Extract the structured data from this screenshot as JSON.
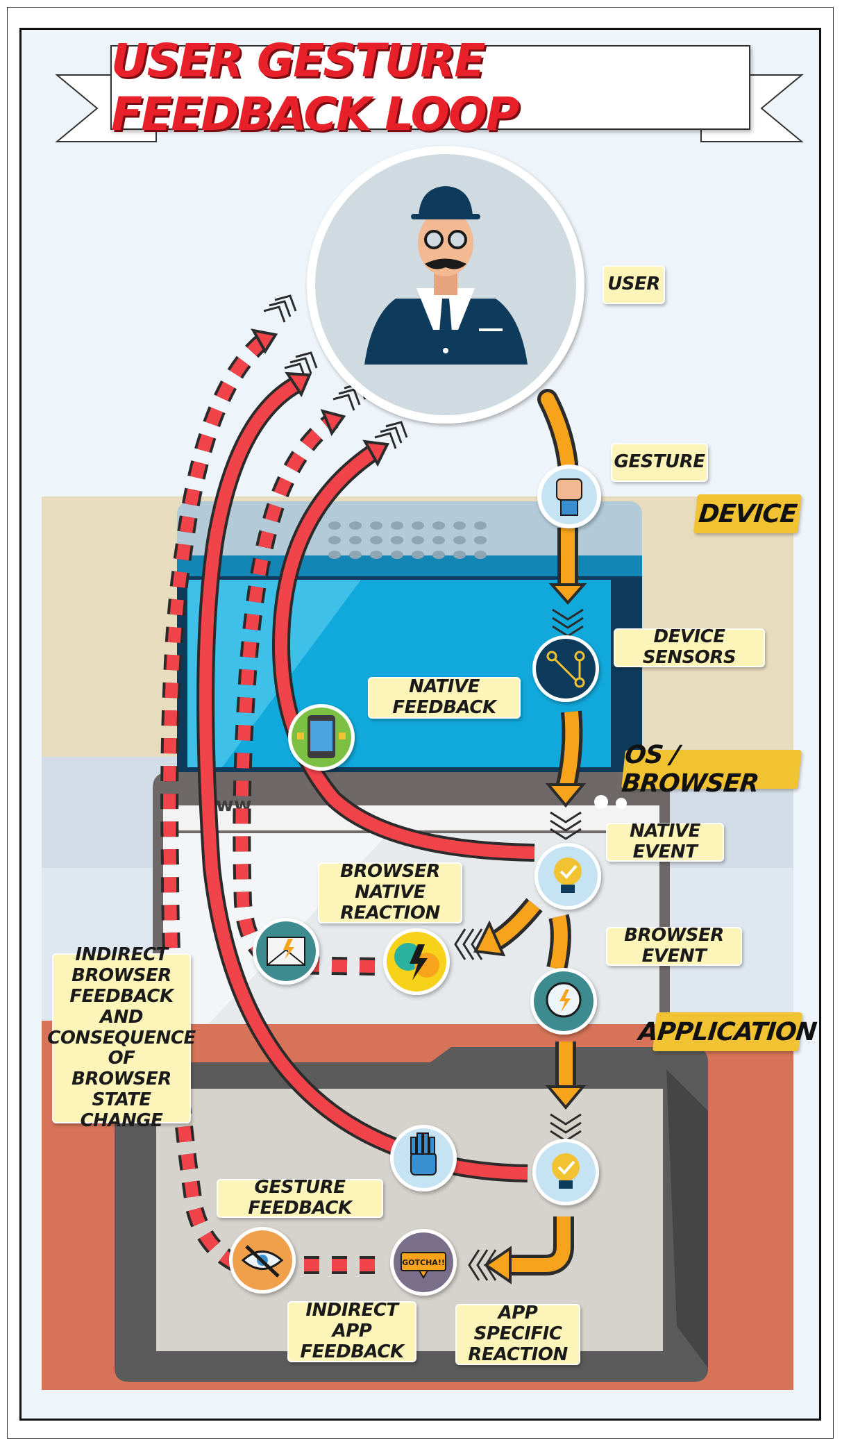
{
  "title": "USER GESTURE FEEDBACK LOOP",
  "zones": {
    "device": "DEVICE",
    "os_browser": "OS / BROWSER",
    "application": "APPLICATION"
  },
  "labels": {
    "user": "USER",
    "gesture": "GESTURE",
    "device_sensors": "DEVICE SENSORS",
    "native_feedback": "NATIVE FEEDBACK",
    "native_event": "NATIVE EVENT",
    "browser_native_reaction": [
      "BROWSER",
      "NATIVE REACTION"
    ],
    "browser_event": "BROWSER EVENT",
    "indirect_browser_feedback": [
      "INDIRECT",
      "BROWSER",
      "FEEDBACK AND",
      "CONSEQUENCE",
      "OF BROWSER",
      "STATE CHANGE"
    ],
    "gesture_feedback": "GESTURE FEEDBACK",
    "indirect_app_feedback": [
      "INDIRECT APP",
      "FEEDBACK"
    ],
    "app_specific_reaction": [
      "APP SPECIFIC",
      "REACTION"
    ]
  },
  "badge_text": "GOTCHA!!",
  "browser_bar_text": "www",
  "icons": [
    "user-avatar",
    "fist-icon",
    "sensor-nodes-icon",
    "phone-network-icon",
    "lightbulb-check-icon",
    "speech-bubbles-lightning-icon",
    "email-lightning-icon",
    "speech-lightning-icon",
    "robot-hand-icon",
    "eye-crossed-icon",
    "gotcha-sign-icon"
  ],
  "colors": {
    "title_red": "#e8202a",
    "label_bg": "#fdf4b9",
    "zone_bg": "#f1c232",
    "arrow_orange": "#f7a41c",
    "arrow_red": "#f0444a",
    "device_zone": "#e8dcbf",
    "browser_zone": "#d3dde7",
    "app_zone": "#d67358"
  }
}
